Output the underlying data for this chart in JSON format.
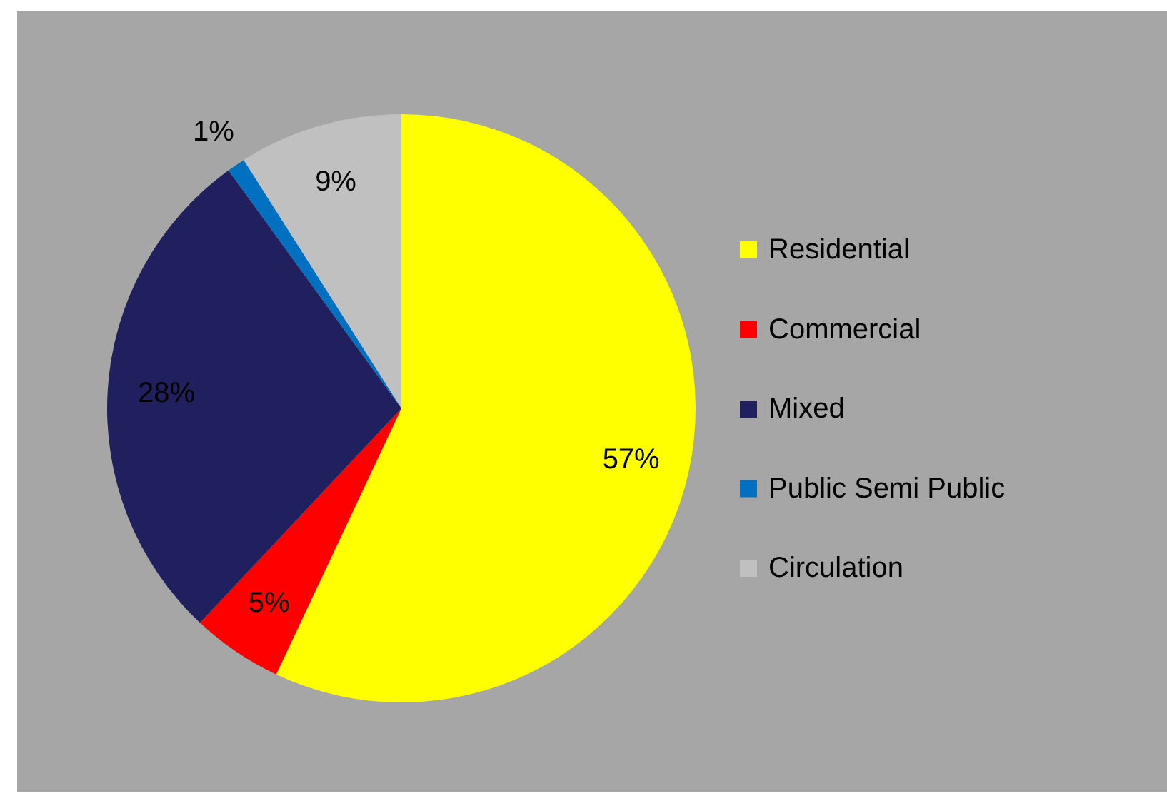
{
  "chart_data": {
    "type": "pie",
    "categories": [
      "Residential",
      "Commercial",
      "Mixed",
      "Public Semi Public",
      "Circulation"
    ],
    "values": [
      57,
      5,
      28,
      1,
      9
    ],
    "colors": [
      "#ffff00",
      "#ff0000",
      "#20205f",
      "#0070c0",
      "#c0c0c0"
    ],
    "value_labels": [
      "57%",
      "5%",
      "28%",
      "1%",
      "9%"
    ],
    "legend": "right"
  }
}
